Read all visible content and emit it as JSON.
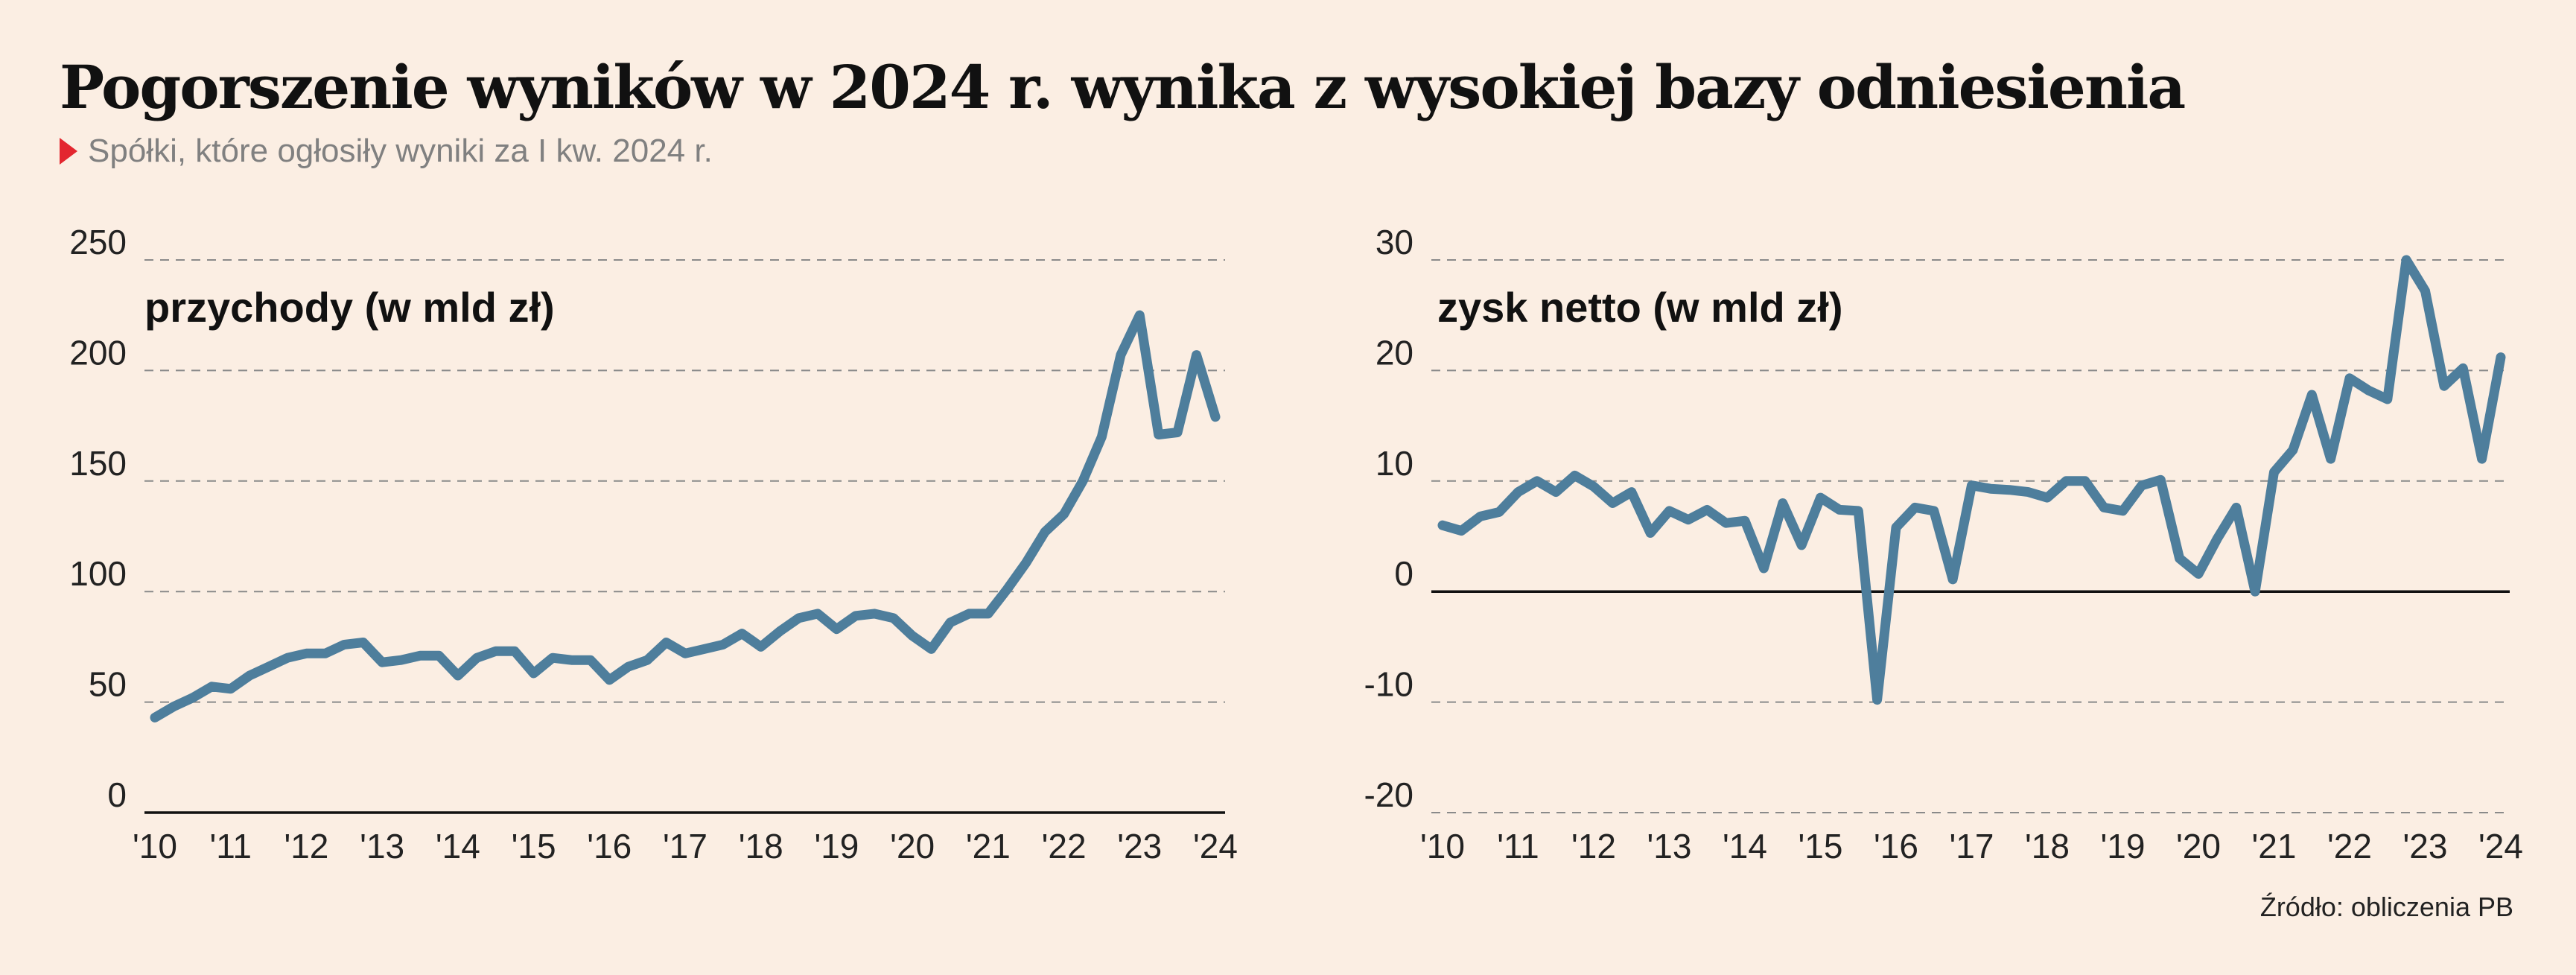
{
  "title": "Pogorszenie wyników w 2024 r. wynika z wysokiej bazy odniesienia",
  "subtitle": "Spółki, które ogłosiły wyniki za I kw. 2024 r.",
  "source": "Źródło: obliczenia PB",
  "line_color": "#4e7e9c",
  "accent_color": "#e3262f",
  "chart_data": [
    {
      "type": "line",
      "title": "przychody (w mld zł)",
      "ylim": [
        0,
        250
      ],
      "yticks": [
        0,
        50,
        100,
        150,
        200,
        250
      ],
      "xticks": [
        "'10",
        "'11",
        "'12",
        "'13",
        "'14",
        "'15",
        "'16",
        "'17",
        "'18",
        "'19",
        "'20",
        "'21",
        "'22",
        "'23",
        "'24"
      ],
      "grid": true,
      "x": [
        2010.0,
        2010.25,
        2010.5,
        2010.75,
        2011.0,
        2011.25,
        2011.5,
        2011.75,
        2012.0,
        2012.25,
        2012.5,
        2012.75,
        2013.0,
        2013.25,
        2013.5,
        2013.75,
        2014.0,
        2014.25,
        2014.5,
        2014.75,
        2015.0,
        2015.25,
        2015.5,
        2015.75,
        2016.0,
        2016.25,
        2016.5,
        2016.75,
        2017.0,
        2017.25,
        2017.5,
        2017.75,
        2018.0,
        2018.25,
        2018.5,
        2018.75,
        2019.0,
        2019.25,
        2019.5,
        2019.75,
        2020.0,
        2020.25,
        2020.5,
        2020.75,
        2021.0,
        2021.25,
        2021.5,
        2021.75,
        2022.0,
        2022.25,
        2022.5,
        2022.75,
        2023.0,
        2023.25,
        2023.5,
        2023.75,
        2024.0
      ],
      "values": [
        43,
        48,
        52,
        57,
        56,
        62,
        66,
        70,
        72,
        72,
        76,
        77,
        68,
        69,
        71,
        71,
        62,
        70,
        73,
        73,
        63,
        70,
        69,
        69,
        60,
        66,
        69,
        77,
        72,
        74,
        76,
        81,
        75,
        82,
        88,
        90,
        83,
        89,
        90,
        88,
        80,
        74,
        86,
        90,
        90,
        101,
        113,
        127,
        135,
        150,
        170,
        207,
        225,
        171,
        172,
        207,
        179
      ]
    },
    {
      "type": "line",
      "title": "zysk netto (w mld zł)",
      "ylim": [
        -20,
        30
      ],
      "yticks": [
        -20,
        -10,
        0,
        10,
        20,
        30
      ],
      "xticks": [
        "'10",
        "'11",
        "'12",
        "'13",
        "'14",
        "'15",
        "'16",
        "'17",
        "'18",
        "'19",
        "'20",
        "'21",
        "'22",
        "'23",
        "'24"
      ],
      "grid": true,
      "x": [
        2010.0,
        2010.25,
        2010.5,
        2010.75,
        2011.0,
        2011.25,
        2011.5,
        2011.75,
        2012.0,
        2012.25,
        2012.5,
        2012.75,
        2013.0,
        2013.25,
        2013.5,
        2013.75,
        2014.0,
        2014.25,
        2014.5,
        2014.75,
        2015.0,
        2015.25,
        2015.5,
        2015.75,
        2016.0,
        2016.25,
        2016.5,
        2016.75,
        2017.0,
        2017.25,
        2017.5,
        2017.75,
        2018.0,
        2018.25,
        2018.5,
        2018.75,
        2019.0,
        2019.25,
        2019.5,
        2019.75,
        2020.0,
        2020.25,
        2020.5,
        2020.75,
        2021.0,
        2021.25,
        2021.5,
        2021.75,
        2022.0,
        2022.25,
        2022.5,
        2022.75,
        2023.0,
        2023.25,
        2023.5,
        2023.75,
        2024.0
      ],
      "values": [
        6,
        5.5,
        6.8,
        7.2,
        9,
        10,
        9,
        10.5,
        9.5,
        8,
        9,
        5.3,
        7.3,
        6.5,
        7.4,
        6.2,
        6.4,
        2.1,
        8,
        4.2,
        8.5,
        7.4,
        7.3,
        -9.8,
        5.8,
        7.6,
        7.3,
        1.1,
        9.6,
        9.3,
        9.2,
        9,
        8.5,
        10,
        10,
        7.6,
        7.3,
        9.6,
        10.1,
        3,
        1.6,
        4.8,
        7.6,
        0,
        10.8,
        12.8,
        17.8,
        12,
        19.3,
        18.2,
        17.4,
        30,
        27.2,
        18.6,
        20.2,
        12,
        21.2
      ]
    }
  ]
}
